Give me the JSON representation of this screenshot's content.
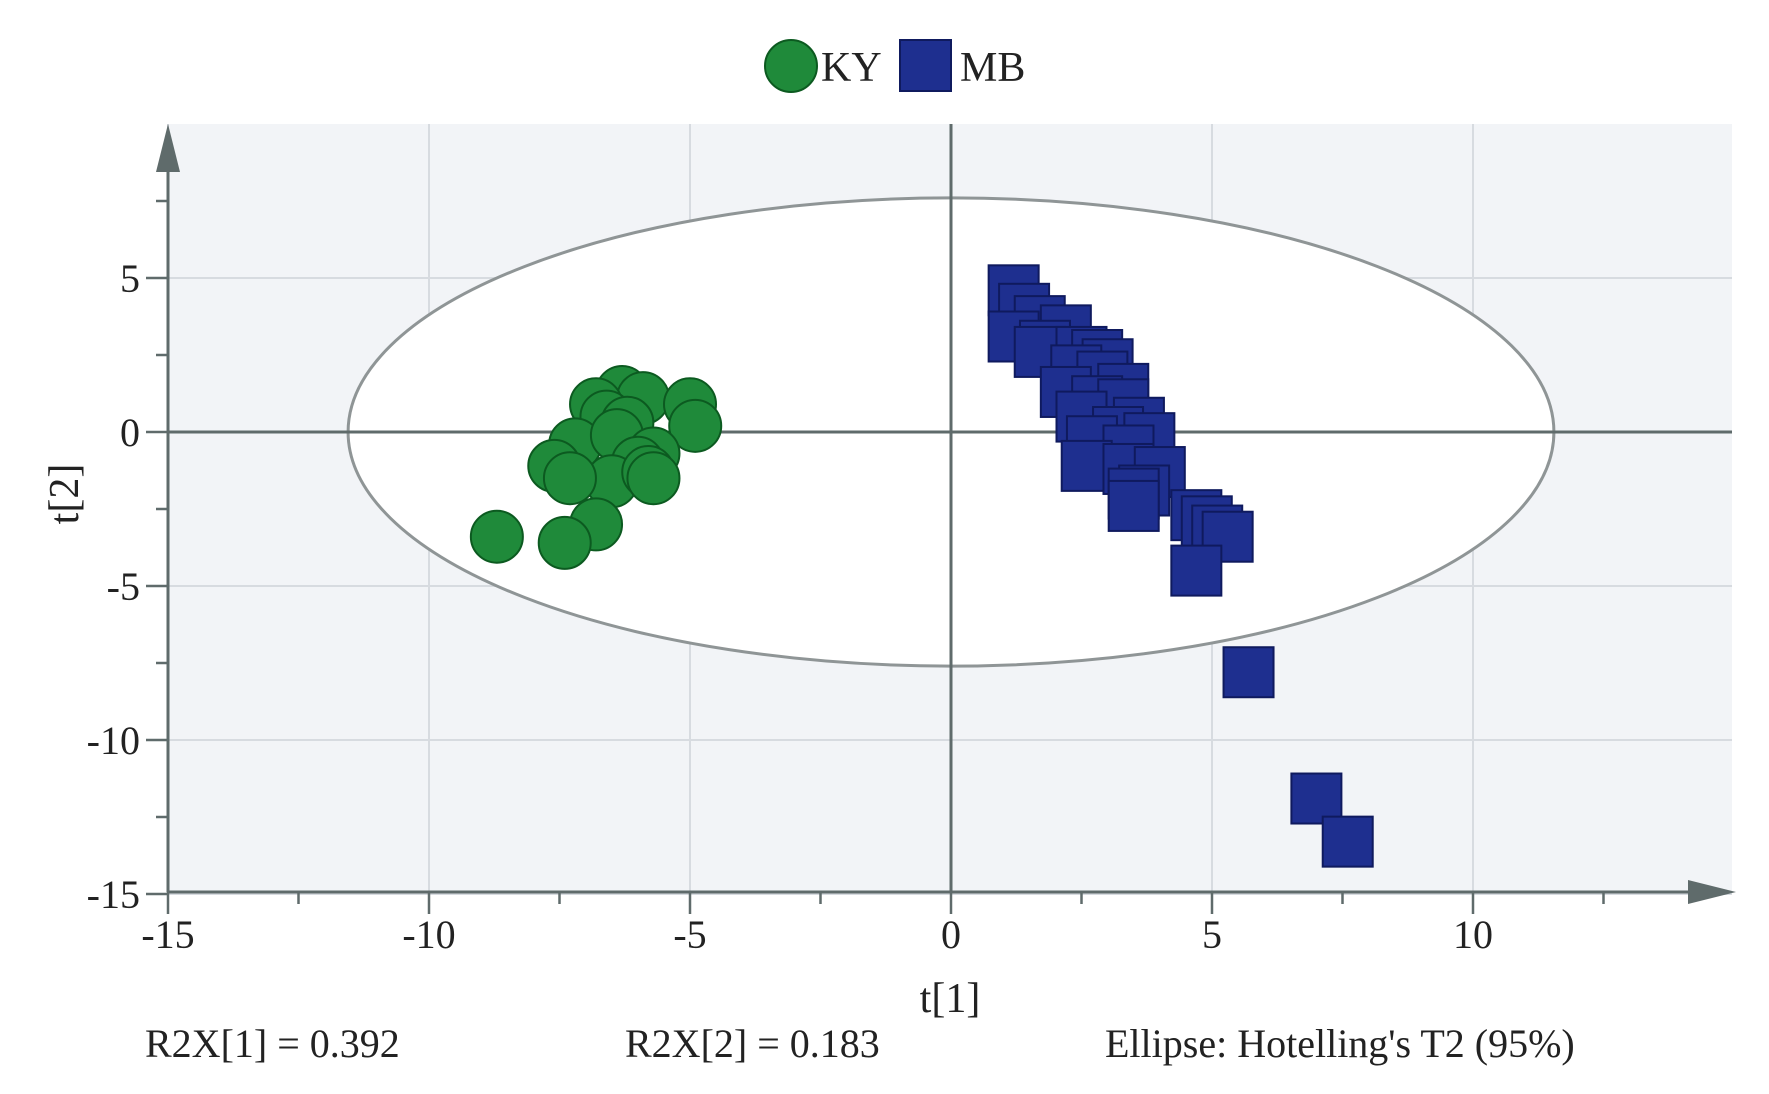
{
  "colors": {
    "KY": "#1f8a3a",
    "KY_stroke": "#0c5a20",
    "MB": "#1e2f8f",
    "MB_stroke": "#0f1a5e",
    "plot_background": "#f2f4f7",
    "grid": "#d7dbe0",
    "axis": "#5f6b6b",
    "ellipse": "#8f9596"
  },
  "legend": {
    "ky_label": "KY",
    "mb_label": "MB",
    "ky_marker_icon": "circle-marker",
    "mb_marker_icon": "square-marker"
  },
  "footer": {
    "r2x1": "R2X[1] = 0.392",
    "r2x2": "R2X[2] = 0.183",
    "ellipse_note": "Ellipse: Hotelling's T2 (95%)"
  },
  "chart_data": {
    "type": "scatter",
    "title": "",
    "xlabel": "t[1]",
    "ylabel": "t[2]",
    "xlim": [
      -15,
      15
    ],
    "ylim": [
      -15,
      10
    ],
    "xticks": [
      -15,
      -10,
      -5,
      0,
      5,
      10
    ],
    "yticks": [
      -15,
      -10,
      -5,
      0,
      5
    ],
    "grid": true,
    "legend_position": "top-center",
    "ellipse": {
      "center": [
        0,
        0
      ],
      "rx": 11.55,
      "ry": 7.6,
      "label": "Hotelling's T2 (95%)"
    },
    "series": [
      {
        "name": "KY",
        "marker": "circle",
        "points": [
          [
            -6.3,
            1.3
          ],
          [
            -5.9,
            1.1
          ],
          [
            -6.8,
            0.9
          ],
          [
            -5.0,
            0.9
          ],
          [
            -6.6,
            0.5
          ],
          [
            -6.2,
            0.3
          ],
          [
            -4.9,
            0.2
          ],
          [
            -7.2,
            -0.4
          ],
          [
            -6.4,
            -0.1
          ],
          [
            -5.7,
            -0.7
          ],
          [
            -6.0,
            -1.0
          ],
          [
            -7.6,
            -1.1
          ],
          [
            -6.5,
            -1.6
          ],
          [
            -5.8,
            -1.3
          ],
          [
            -7.3,
            -1.5
          ],
          [
            -5.7,
            -1.5
          ],
          [
            -6.8,
            -3.0
          ],
          [
            -8.7,
            -3.4
          ],
          [
            -7.4,
            -3.6
          ]
        ]
      },
      {
        "name": "MB",
        "marker": "square",
        "points": [
          [
            1.2,
            4.6
          ],
          [
            1.4,
            4.0
          ],
          [
            1.7,
            3.6
          ],
          [
            1.2,
            3.1
          ],
          [
            2.2,
            3.3
          ],
          [
            1.8,
            2.8
          ],
          [
            1.7,
            2.6
          ],
          [
            2.5,
            2.6
          ],
          [
            2.8,
            2.5
          ],
          [
            3.0,
            2.2
          ],
          [
            2.4,
            2.0
          ],
          [
            2.9,
            1.8
          ],
          [
            3.3,
            1.4
          ],
          [
            2.2,
            1.3
          ],
          [
            2.8,
            1.0
          ],
          [
            3.3,
            0.9
          ],
          [
            2.5,
            0.5
          ],
          [
            3.6,
            0.3
          ],
          [
            3.2,
            0.0
          ],
          [
            2.7,
            -0.3
          ],
          [
            3.8,
            -0.2
          ],
          [
            3.4,
            -0.6
          ],
          [
            2.6,
            -1.1
          ],
          [
            3.4,
            -1.2
          ],
          [
            4.0,
            -1.3
          ],
          [
            3.7,
            -1.9
          ],
          [
            3.5,
            -2.0
          ],
          [
            3.5,
            -2.4
          ],
          [
            4.7,
            -2.7
          ],
          [
            4.9,
            -2.9
          ],
          [
            5.1,
            -3.2
          ],
          [
            5.3,
            -3.4
          ],
          [
            4.7,
            -4.5
          ],
          [
            5.7,
            -7.8
          ],
          [
            7.0,
            -11.9
          ],
          [
            7.6,
            -13.3
          ]
        ]
      }
    ]
  }
}
